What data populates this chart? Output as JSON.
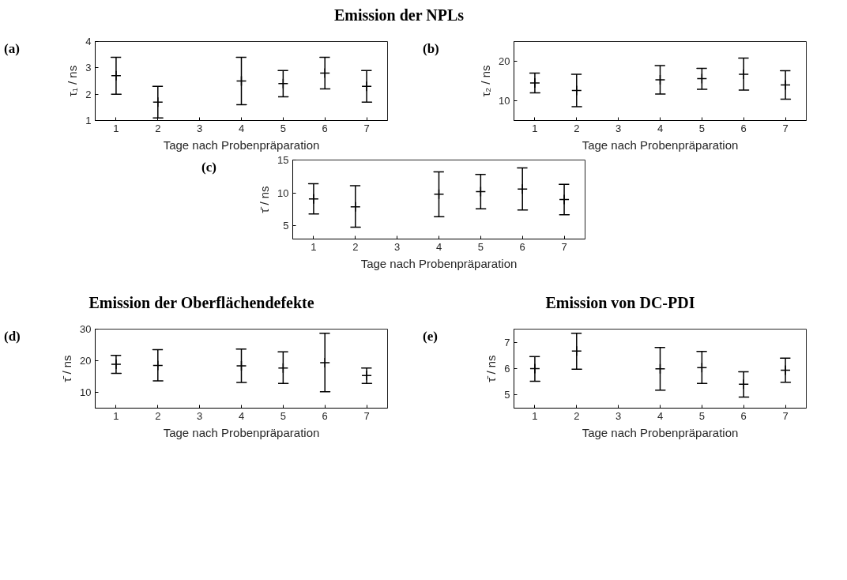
{
  "chart_data": [
    {
      "type": "scatter",
      "title": "Emission der NPLs",
      "annotations": [
        "(a)"
      ],
      "xlabel": "Tage nach Probenpräparation",
      "ylabel": "τ₁ / ns",
      "marker": "cross",
      "grid": false,
      "xlim": [
        0.5,
        7.5
      ],
      "xticks": [
        1,
        2,
        3,
        4,
        5,
        6,
        7
      ],
      "ylim": [
        1,
        4
      ],
      "yticks": [
        1,
        2,
        3,
        4
      ],
      "x": [
        1,
        2,
        4,
        5,
        6,
        7
      ],
      "values": [
        2.7,
        1.7,
        2.5,
        2.4,
        2.8,
        2.3
      ],
      "errors": [
        [
          2.0,
          3.4
        ],
        [
          1.1,
          2.3
        ],
        [
          1.6,
          3.4
        ],
        [
          1.9,
          2.9
        ],
        [
          2.2,
          3.4
        ],
        [
          1.7,
          2.9
        ]
      ],
      "color": "#000000"
    },
    {
      "type": "scatter",
      "annotations": [
        "(b)"
      ],
      "xlabel": "Tage nach Probenpräparation",
      "ylabel": "τ₂ / ns",
      "marker": "cross",
      "grid": false,
      "xlim": [
        0.5,
        7.5
      ],
      "xticks": [
        1,
        2,
        3,
        4,
        5,
        6,
        7
      ],
      "ylim": [
        5,
        25
      ],
      "yticks": [
        10,
        20
      ],
      "x": [
        1,
        2,
        4,
        5,
        6,
        7
      ],
      "values": [
        14.5,
        12.6,
        15.3,
        15.6,
        16.7,
        14.0
      ],
      "errors": [
        [
          12.0,
          17.0
        ],
        [
          8.5,
          16.7
        ],
        [
          11.7,
          18.9
        ],
        [
          12.9,
          18.2
        ],
        [
          12.7,
          20.8
        ],
        [
          10.4,
          17.6
        ]
      ],
      "color": "#000000"
    },
    {
      "type": "scatter",
      "annotations": [
        "(c)"
      ],
      "xlabel": "Tage nach Probenpräparation",
      "ylabel": "τ̄ / ns",
      "marker": "cross",
      "grid": false,
      "xlim": [
        0.5,
        7.5
      ],
      "xticks": [
        1,
        2,
        3,
        4,
        5,
        6,
        7
      ],
      "ylim": [
        3,
        15
      ],
      "yticks": [
        5,
        10,
        15
      ],
      "x": [
        1,
        2,
        4,
        5,
        6,
        7
      ],
      "values": [
        9.1,
        7.9,
        9.8,
        10.2,
        10.6,
        9.0
      ],
      "errors": [
        [
          6.8,
          11.4
        ],
        [
          4.8,
          11.1
        ],
        [
          6.4,
          13.2
        ],
        [
          7.6,
          12.8
        ],
        [
          7.4,
          13.8
        ],
        [
          6.7,
          11.3
        ]
      ],
      "color": "#000000"
    },
    {
      "type": "scatter",
      "title": "Emission der Oberflächendefekte",
      "annotations": [
        "(d)"
      ],
      "xlabel": "Tage nach Probenpräparation",
      "ylabel": "τ̄ / ns",
      "marker": "cross",
      "grid": false,
      "xlim": [
        0.5,
        7.5
      ],
      "xticks": [
        1,
        2,
        3,
        4,
        5,
        6,
        7
      ],
      "ylim": [
        5,
        30
      ],
      "yticks": [
        10,
        20,
        30
      ],
      "x": [
        1,
        2,
        4,
        5,
        6,
        7
      ],
      "values": [
        18.9,
        18.5,
        18.4,
        17.7,
        19.4,
        15.3
      ],
      "errors": [
        [
          16.0,
          21.7
        ],
        [
          13.6,
          23.5
        ],
        [
          13.1,
          23.7
        ],
        [
          12.8,
          22.8
        ],
        [
          10.2,
          28.7
        ],
        [
          12.8,
          17.7
        ]
      ],
      "color": "#000000"
    },
    {
      "type": "scatter",
      "title": "Emission von DC-PDI",
      "annotations": [
        "(e)"
      ],
      "xlabel": "Tage nach Probenpräparation",
      "ylabel": "τ̄ / ns",
      "marker": "cross",
      "grid": false,
      "xlim": [
        0.5,
        7.5
      ],
      "xticks": [
        1,
        2,
        3,
        4,
        5,
        6,
        7
      ],
      "ylim": [
        4.5,
        7.5
      ],
      "yticks": [
        5,
        6,
        7
      ],
      "x": [
        1,
        2,
        4,
        5,
        6,
        7
      ],
      "values": [
        6.0,
        6.67,
        5.99,
        6.04,
        5.41,
        5.94
      ],
      "errors": [
        [
          5.52,
          6.46
        ],
        [
          5.98,
          7.34
        ],
        [
          5.18,
          6.8
        ],
        [
          5.44,
          6.65
        ],
        [
          4.92,
          5.88
        ],
        [
          5.48,
          6.4
        ]
      ],
      "color": "#000000"
    }
  ]
}
